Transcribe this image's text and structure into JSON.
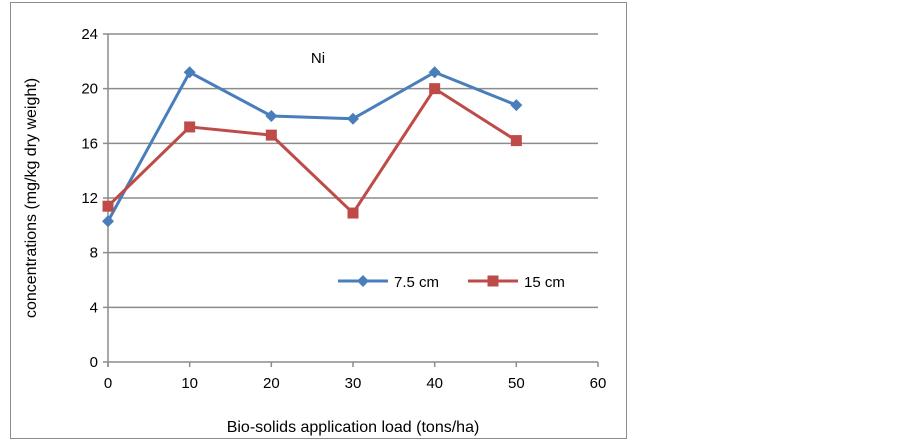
{
  "chart_data": {
    "type": "line",
    "title": "Ni",
    "xlabel": "Bio-solids application load (tons/ha)",
    "ylabel": "concentrations (mg/kg dry weight)",
    "xlim": [
      0,
      60
    ],
    "ylim": [
      0,
      24
    ],
    "xticks": [
      0,
      10,
      20,
      30,
      40,
      50,
      60
    ],
    "yticks": [
      0,
      4,
      8,
      12,
      16,
      20,
      24
    ],
    "grid": "horizontal",
    "legend_position": "bottom-right inside",
    "x": [
      0,
      10,
      20,
      30,
      40,
      50
    ],
    "series": [
      {
        "name": "7.5 cm",
        "color": "#4a7ebb",
        "marker": "diamond",
        "values": [
          10.3,
          21.2,
          18.0,
          17.8,
          21.2,
          18.8
        ]
      },
      {
        "name": "15 cm",
        "color": "#be4b48",
        "marker": "square",
        "values": [
          11.4,
          17.2,
          16.6,
          10.9,
          20.0,
          16.2
        ]
      }
    ]
  }
}
